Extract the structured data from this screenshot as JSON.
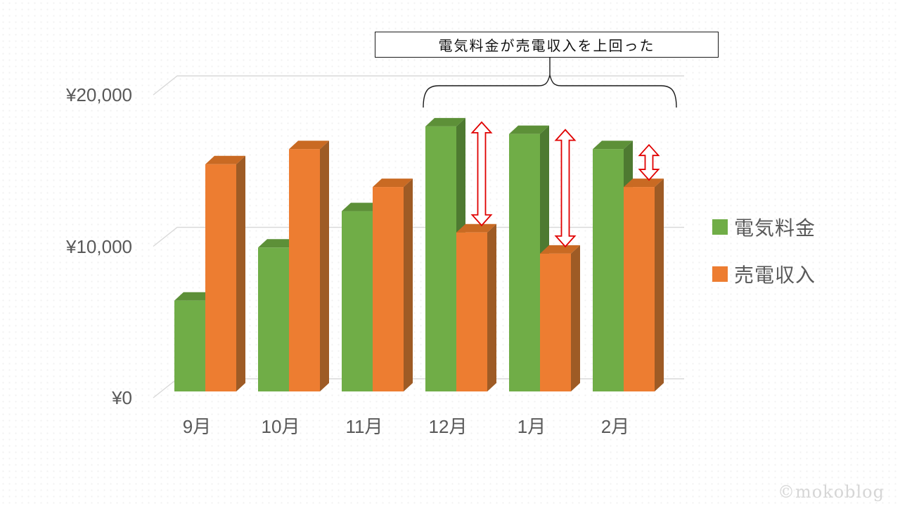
{
  "chart_data": {
    "type": "bar",
    "variant": "3d-clustered",
    "title": "",
    "categories": [
      "9月",
      "10月",
      "11月",
      "12月",
      "1月",
      "2月"
    ],
    "series": [
      {
        "name": "電気料金",
        "values": [
          6000,
          9500,
          11900,
          17500,
          17000,
          16000
        ],
        "colors": {
          "front": "#70AD47",
          "top": "#5D9038",
          "side": "#4E7A31"
        }
      },
      {
        "name": "売電収入",
        "values": [
          15000,
          16000,
          13500,
          10500,
          9100,
          13500
        ],
        "colors": {
          "front": "#ED7D31",
          "top": "#C96A23",
          "side": "#9E5B25"
        }
      }
    ],
    "y_ticks": [
      {
        "value": 0,
        "label": "¥0"
      },
      {
        "value": 10000,
        "label": "¥10,000"
      },
      {
        "value": 20000,
        "label": "¥20,000"
      }
    ],
    "ylim": [
      0,
      20000
    ],
    "grid": true,
    "grid_color": "#d9d9d9",
    "legend_position": "right",
    "annotation": {
      "text": "電気料金が売電収入を上回った",
      "highlight_from": "12月",
      "highlight_to": "2月",
      "arrow_color": "#e00000",
      "brace_color": "#1a1a1a"
    }
  },
  "legend": {
    "items": [
      {
        "label": "電気料金",
        "color": "#70AD47"
      },
      {
        "label": "売電収入",
        "color": "#ED7D31"
      }
    ]
  },
  "annotation_box": {
    "text": "電気料金が売電収入を上回った"
  },
  "watermark": {
    "text": "©mokoblog"
  }
}
